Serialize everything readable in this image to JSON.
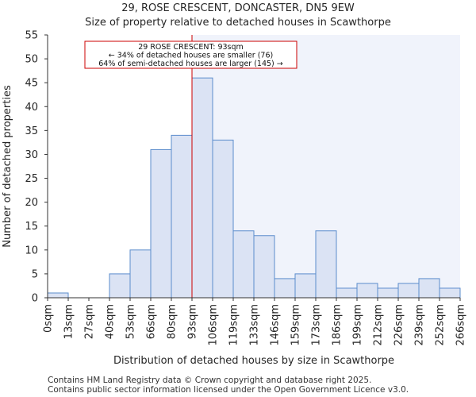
{
  "title_line1": "29, ROSE CRESCENT, DONCASTER, DN5 9EW",
  "title_line2": "Size of property relative to detached houses in Scawthorpe",
  "footer_line1": "Contains HM Land Registry data © Crown copyright and database right 2025.",
  "footer_line2": "Contains public sector information licensed under the Open Government Licence v3.0.",
  "colors": {
    "bar_fill": "#dbe3f4",
    "bar_edge": "#5b8ccc",
    "highlight_bg": "#f0f3fb",
    "marker": "#cc0000",
    "axis": "#333333"
  },
  "chart_data": {
    "type": "bar",
    "title": "Size of property relative to detached houses in Scawthorpe",
    "xlabel": "Distribution of detached houses by size in Scawthorpe",
    "ylabel": "Number of detached properties",
    "tick_labels": [
      "0sqm",
      "13sqm",
      "27sqm",
      "40sqm",
      "53sqm",
      "66sqm",
      "80sqm",
      "93sqm",
      "106sqm",
      "119sqm",
      "133sqm",
      "146sqm",
      "159sqm",
      "173sqm",
      "186sqm",
      "199sqm",
      "212sqm",
      "226sqm",
      "239sqm",
      "252sqm",
      "266sqm"
    ],
    "values": [
      1,
      0,
      0,
      5,
      10,
      31,
      34,
      46,
      33,
      14,
      13,
      4,
      5,
      14,
      2,
      3,
      2,
      3,
      4,
      2
    ],
    "ylim": [
      0,
      55
    ],
    "yticks": [
      0,
      5,
      10,
      15,
      20,
      25,
      30,
      35,
      40,
      45,
      50,
      55
    ],
    "marker_bin_index": 7,
    "marker_label": "29 ROSE CRESCENT: 93sqm",
    "annotation_lines": [
      "29 ROSE CRESCENT: 93sqm",
      "← 34% of detached houses are smaller (76)",
      "64% of semi-detached houses are larger (145) →"
    ]
  }
}
